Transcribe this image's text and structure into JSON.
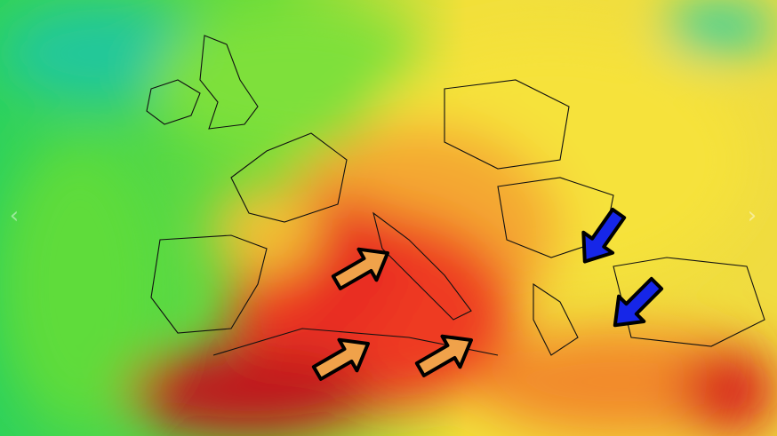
{
  "map": {
    "colors": {
      "cool": "#22c8a0",
      "mild": "#4ddc3a",
      "warm": "#f5e23a",
      "hot": "#f59a2a",
      "very_hot": "#ee2a22",
      "extreme": "#b8141a"
    },
    "warm_arrows": {
      "count": 3,
      "fill": "#f0a24a",
      "direction": "northeast"
    },
    "cool_arrows": {
      "count": 2,
      "fill": "#1626e8",
      "direction": "southwest"
    }
  },
  "carousel": {
    "prev_icon": "chevron-left-icon",
    "next_icon": "chevron-right-icon",
    "prev_glyph": "‹",
    "next_glyph": "›"
  }
}
